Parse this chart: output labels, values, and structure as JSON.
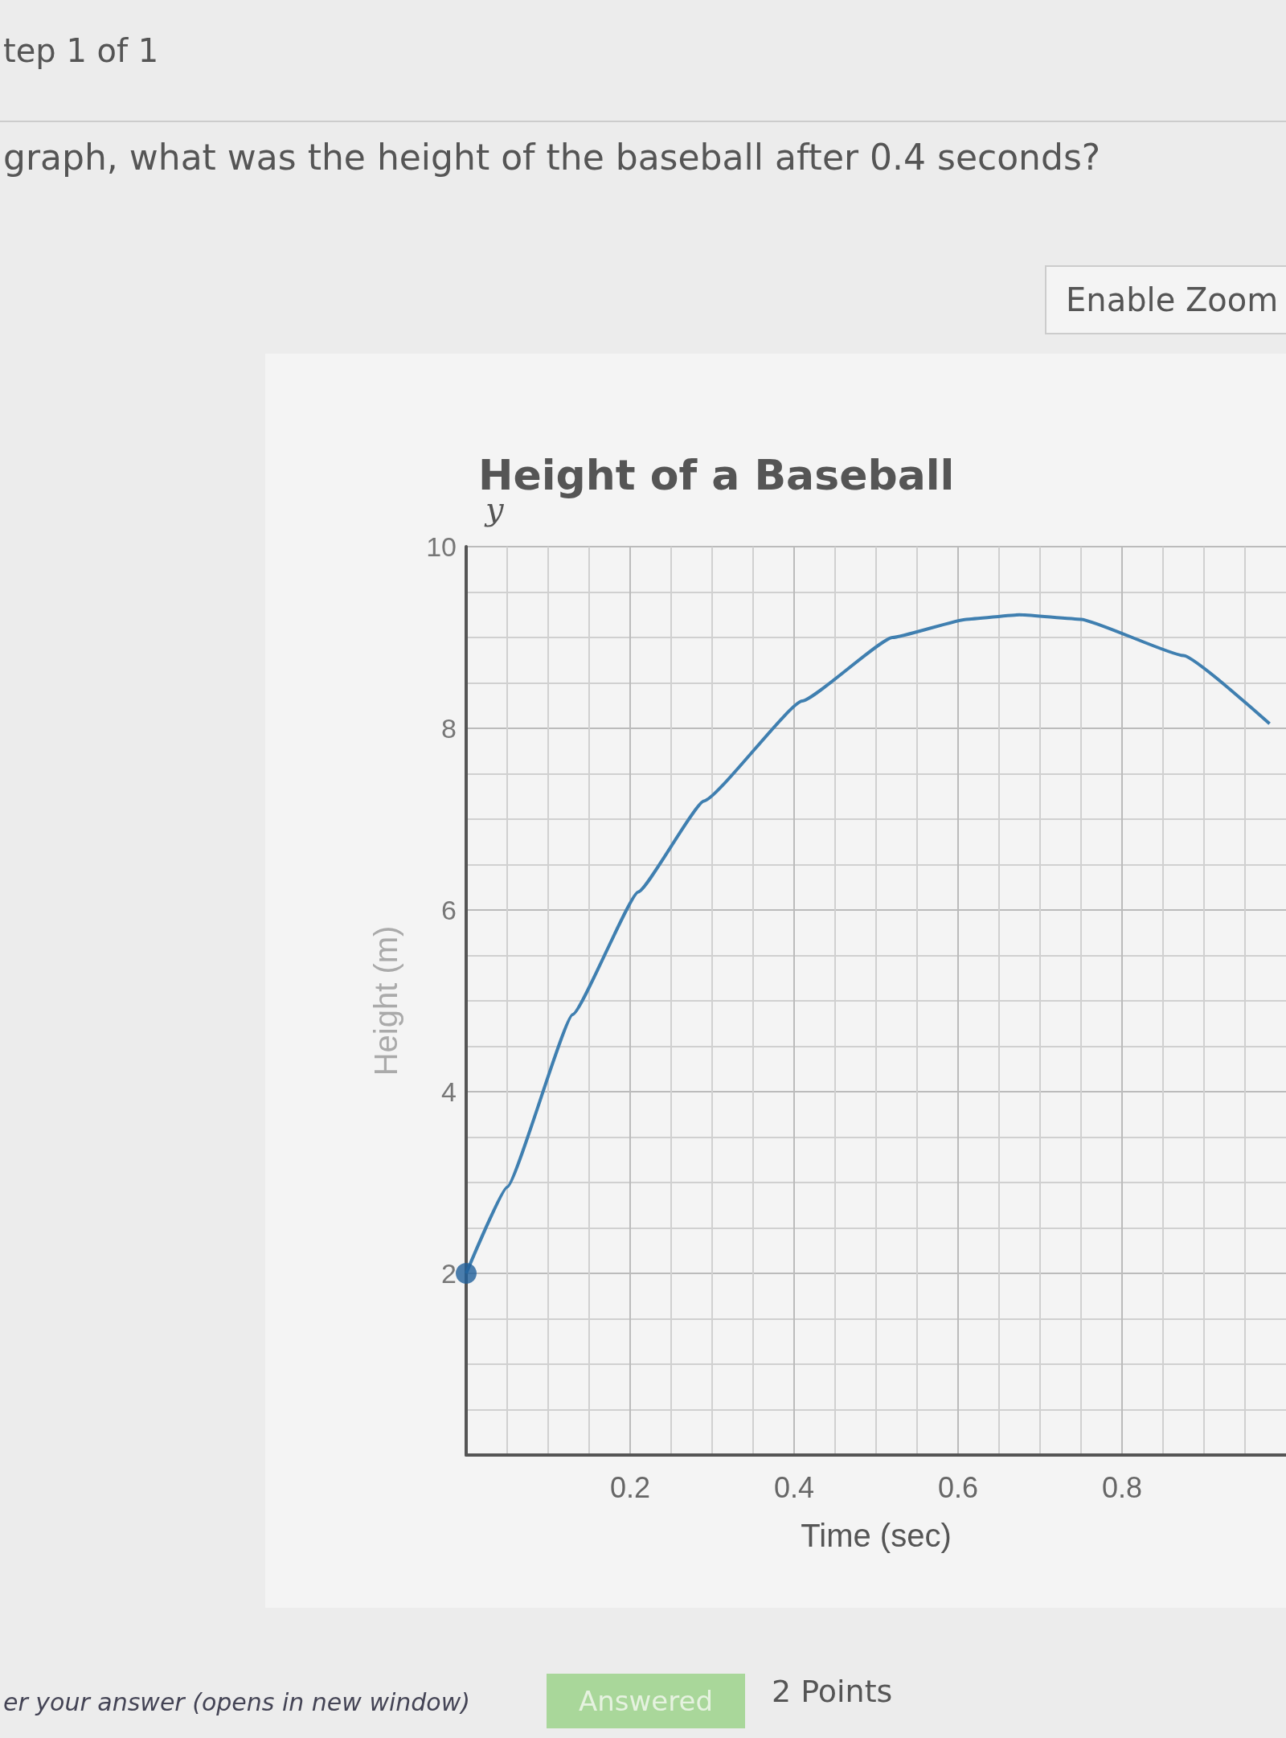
{
  "chart_data": {
    "type": "line",
    "title": "Height of a Baseball",
    "subtitle": "graph, what was the height of the baseball after 0.4 seconds?",
    "xlabel": "Time (sec)",
    "ylabel": "Height (m)",
    "annotations": [
      "tep 1 of 1",
      "Enable Zoom",
      "er your answer (opens in new window)",
      "Answered",
      "2 Points",
      "y"
    ],
    "series": [
      {
        "color": "#3f7fb0",
        "marker": "none",
        "x": [
          0,
          0.05,
          0.13,
          0.21,
          0.29,
          0.41,
          0.52,
          0.61,
          0.675,
          0.75,
          0.875,
          0.98
        ],
        "values": [
          2,
          2.95,
          4.85,
          6.2,
          7.2,
          8.3,
          9.0,
          9.2,
          9.25,
          9.2,
          8.8,
          8.05
        ]
      },
      {
        "type": "scatter",
        "color": "#1f5f9a",
        "marker": "circle",
        "x": [
          0
        ],
        "values": [
          2
        ]
      }
    ],
    "xlim": [
      0,
      1
    ],
    "xticks": [
      0.2,
      0.4,
      0.6,
      0.8
    ],
    "ylim": [
      0,
      10
    ],
    "yticks": [
      2,
      4,
      6,
      8,
      10
    ],
    "grid": true
  }
}
